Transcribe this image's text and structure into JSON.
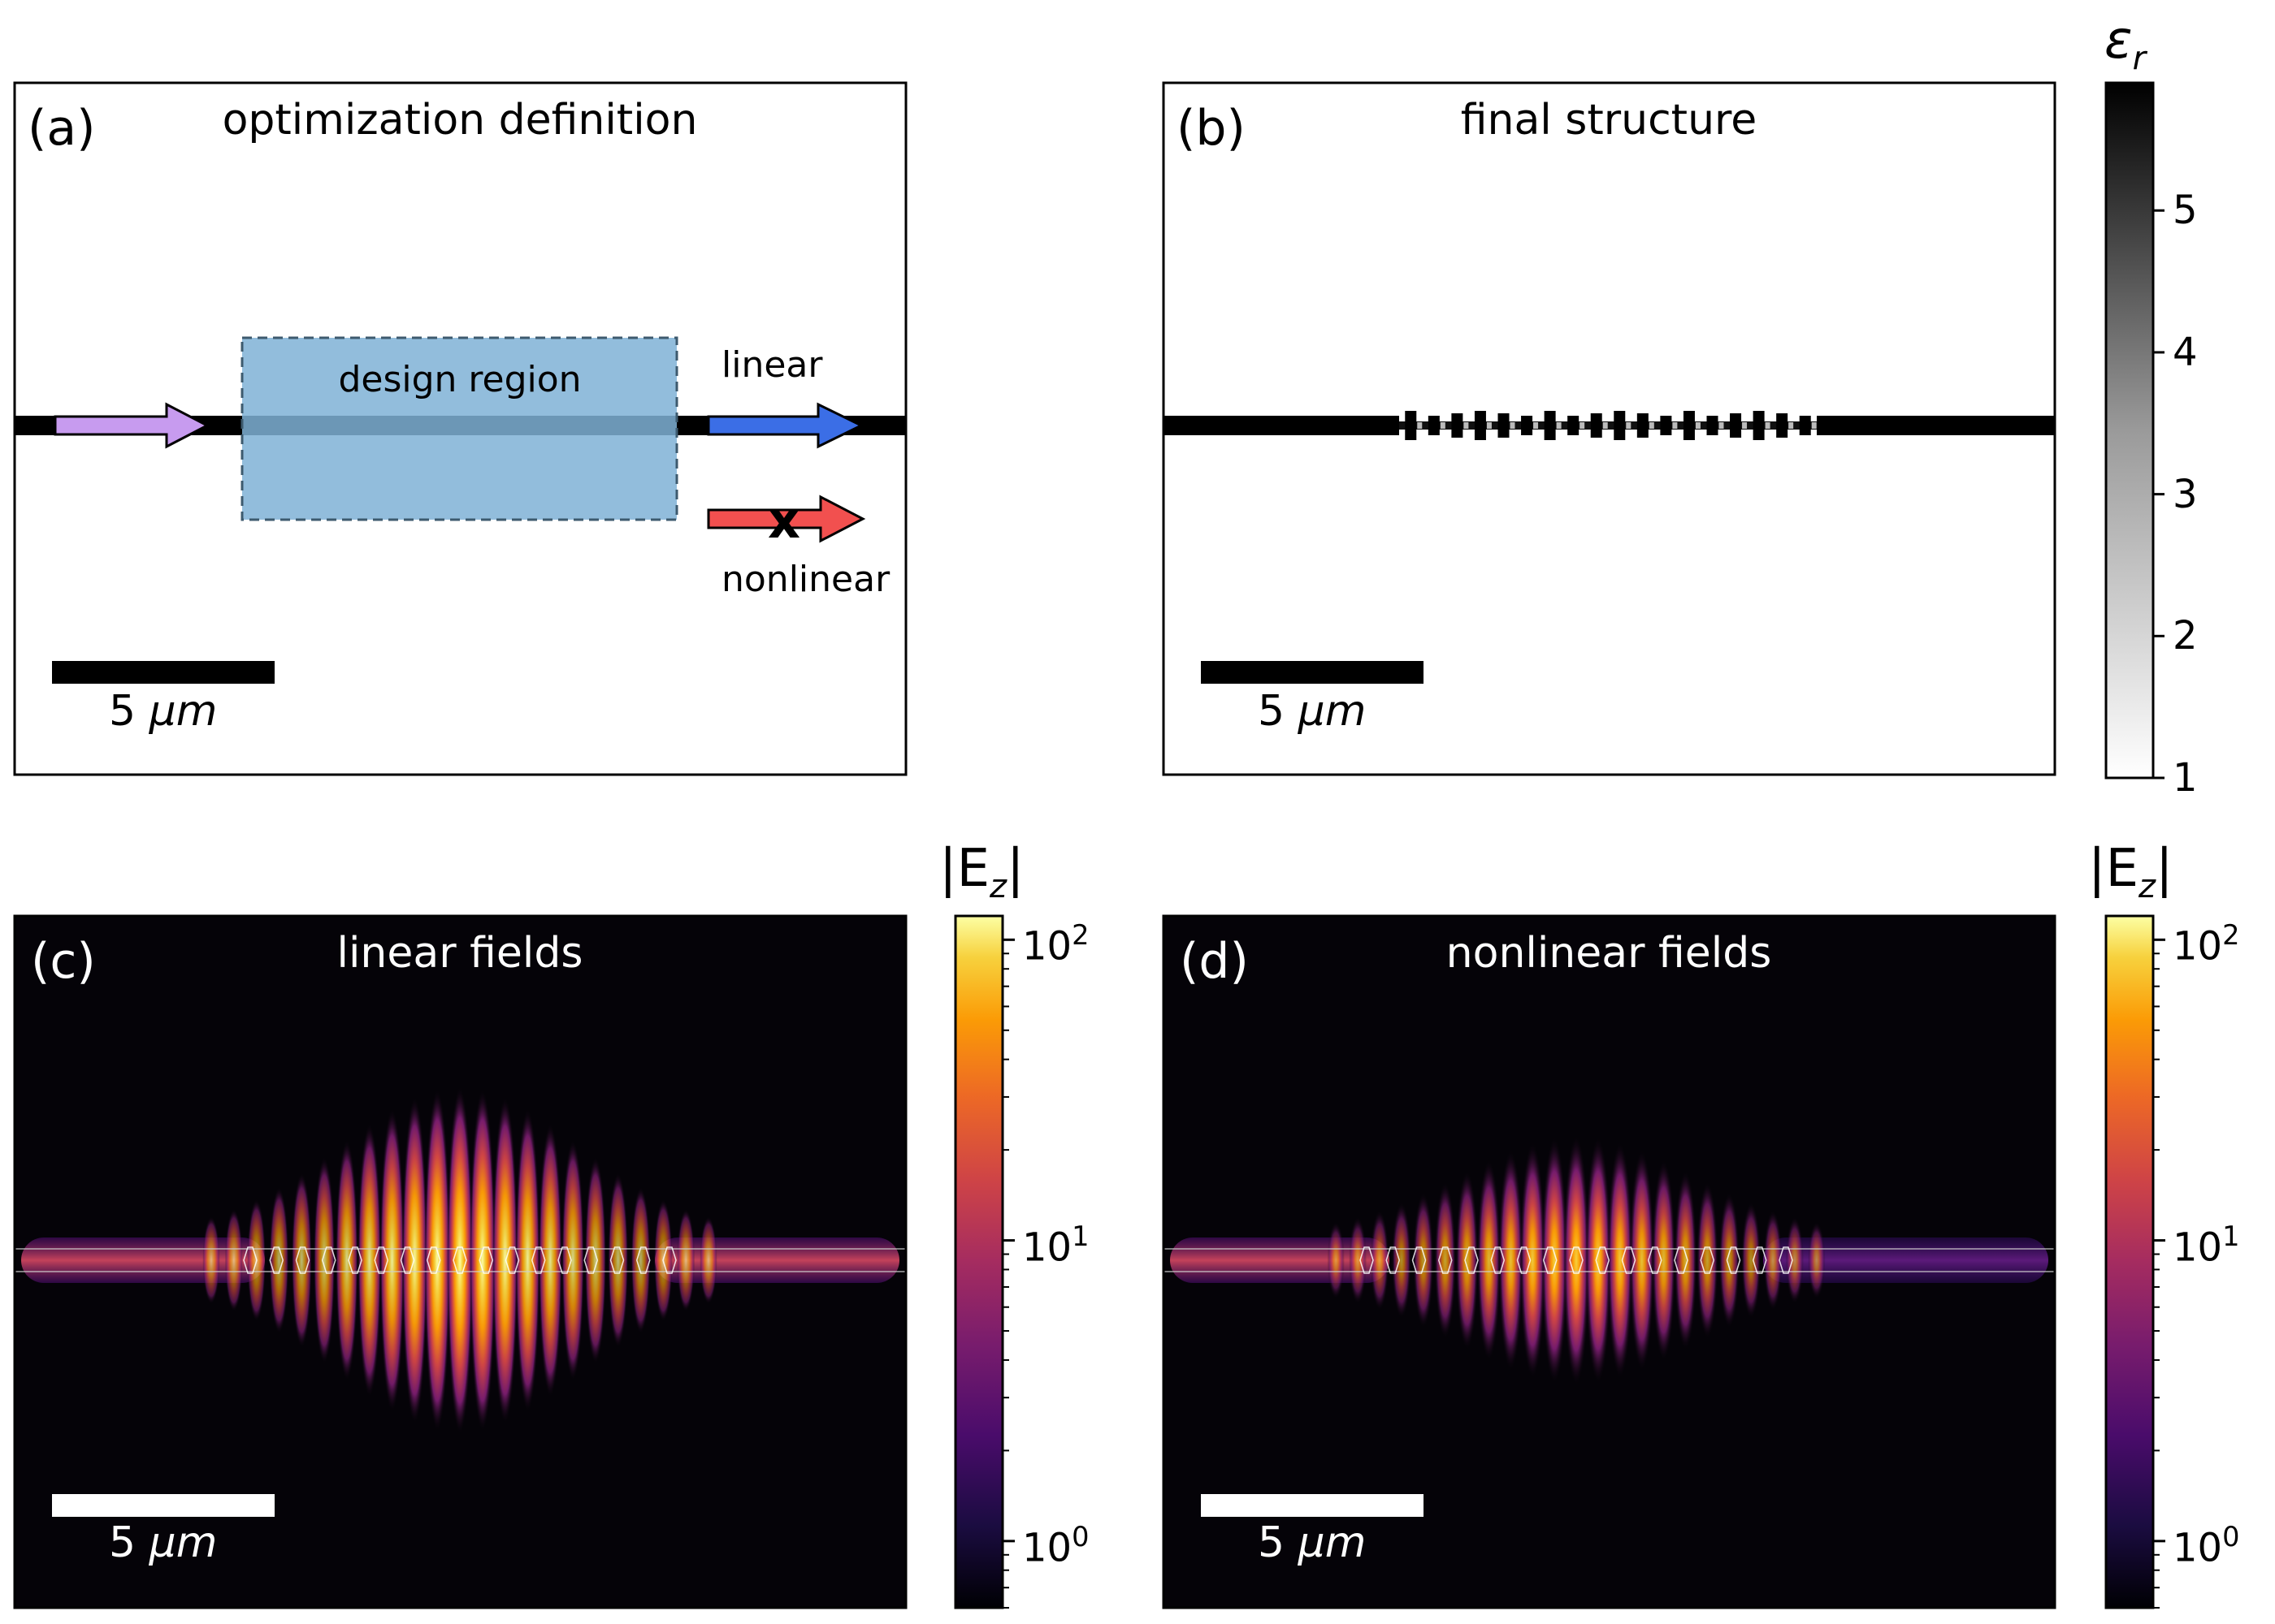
{
  "panels": {
    "a": {
      "letter": "(a)",
      "title": "optimization definition",
      "design_region": "design region",
      "linear_label": "linear",
      "nonlinear_label": "nonlinear",
      "scale_num": "5",
      "scale_unit": "μm"
    },
    "b": {
      "letter": "(b)",
      "title": "final structure",
      "scale_num": "5",
      "scale_unit": "μm"
    },
    "c": {
      "letter": "(c)",
      "title": "linear fields",
      "scale_num": "5",
      "scale_unit": "μm"
    },
    "d": {
      "letter": "(d)",
      "title": "nonlinear fields",
      "scale_num": "5",
      "scale_unit": "μm"
    }
  },
  "colorbars": {
    "permittivity": {
      "label": "εr",
      "label_main": "ε",
      "label_sub": "r",
      "ticks": [
        "1",
        "2",
        "3",
        "4",
        "5"
      ],
      "range": [
        1,
        5.9
      ],
      "colormap": "greys"
    },
    "field_linear": {
      "label": "|Ez|",
      "label_main": "|E",
      "label_sub": "z",
      "label_end": "|",
      "scale": "log",
      "range": [
        0.6,
        120
      ],
      "colormap": "inferno",
      "ticks": [
        {
          "base": "10",
          "exp": "0"
        },
        {
          "base": "10",
          "exp": "1"
        },
        {
          "base": "10",
          "exp": "2"
        }
      ]
    },
    "field_nonlinear": {
      "label": "|Ez|",
      "label_main": "|E",
      "label_sub": "z",
      "label_end": "|",
      "scale": "log",
      "range": [
        0.6,
        120
      ],
      "colormap": "inferno",
      "ticks": [
        {
          "base": "10",
          "exp": "0"
        },
        {
          "base": "10",
          "exp": "1"
        },
        {
          "base": "10",
          "exp": "2"
        }
      ]
    }
  },
  "colors": {
    "input_arrow": "#c79bef",
    "linear_arrow": "#3b6ee6",
    "nonlinear_arrow": "#f2504f",
    "design_region": "#7fb2d6",
    "field_background": "#050308"
  }
}
